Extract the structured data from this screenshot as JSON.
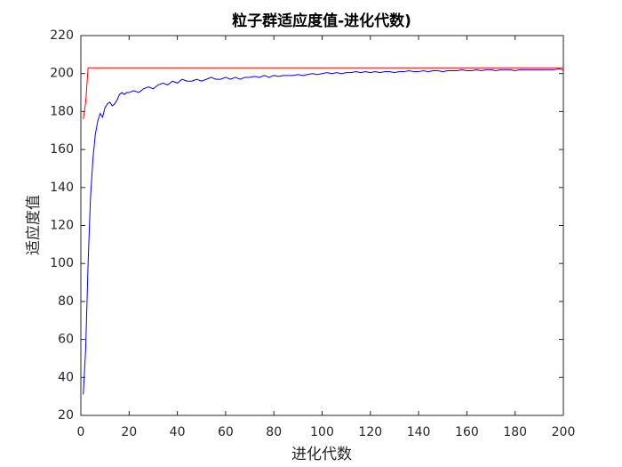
{
  "chart_data": {
    "type": "line",
    "title": "粒子群适应度值-进化代数)",
    "xlabel": "进化代数",
    "ylabel": "适应度值",
    "x": [
      1,
      2,
      3,
      4,
      5,
      6,
      7,
      8,
      9,
      10,
      11,
      12,
      13,
      14,
      15,
      16,
      17,
      18,
      19,
      20,
      22,
      24,
      26,
      28,
      30,
      32,
      34,
      36,
      38,
      40,
      42,
      44,
      46,
      48,
      50,
      52,
      54,
      56,
      58,
      60,
      62,
      64,
      66,
      68,
      70,
      72,
      74,
      76,
      78,
      80,
      82,
      84,
      86,
      88,
      90,
      92,
      94,
      96,
      98,
      100,
      102,
      104,
      106,
      108,
      110,
      112,
      114,
      116,
      118,
      120,
      122,
      124,
      126,
      128,
      130,
      132,
      134,
      136,
      138,
      140,
      142,
      144,
      146,
      148,
      150,
      152,
      154,
      156,
      158,
      160,
      162,
      164,
      166,
      168,
      170,
      172,
      174,
      176,
      178,
      180,
      182,
      184,
      186,
      188,
      190,
      192,
      194,
      196,
      198,
      200
    ],
    "series": [
      {
        "color": "#ff0000",
        "values": [
          176,
          185,
          203,
          203,
          203,
          203,
          203,
          203,
          203,
          203,
          203,
          203,
          203,
          203,
          203,
          203,
          203,
          203,
          203,
          203,
          203,
          203,
          203,
          203,
          203,
          203,
          203,
          203,
          203,
          203,
          203,
          203,
          203,
          203,
          203,
          203,
          203,
          203,
          203,
          203,
          203,
          203,
          203,
          203,
          203,
          203,
          203,
          203,
          203,
          203,
          203,
          203,
          203,
          203,
          203,
          203,
          203,
          203,
          203,
          203,
          203,
          203,
          203,
          203,
          203,
          203,
          203,
          203,
          203,
          203,
          203,
          203,
          203,
          203,
          203,
          203,
          203,
          203,
          203,
          203,
          203,
          203,
          203,
          203,
          203,
          203,
          203,
          203,
          203,
          203,
          203,
          203,
          203,
          203,
          203,
          203,
          203,
          203,
          203,
          203,
          203,
          203,
          203,
          203,
          203,
          203,
          203,
          203,
          203,
          203
        ]
      },
      {
        "color": "#0000ff",
        "values": [
          31,
          55,
          100,
          135,
          155,
          168,
          175,
          179,
          177,
          182,
          184,
          185,
          183,
          184,
          186,
          189,
          190,
          189,
          190,
          190,
          191,
          190,
          192,
          193,
          192,
          194,
          195,
          194,
          196,
          195,
          197,
          196,
          196,
          197,
          196,
          197,
          198,
          197,
          197,
          198,
          197,
          198,
          197,
          198,
          198,
          198.5,
          198,
          199,
          198,
          199,
          198.5,
          199,
          199,
          199,
          199.5,
          199,
          199.5,
          200,
          199.5,
          200,
          200.5,
          200,
          200.5,
          200,
          200.5,
          200.5,
          201,
          200.5,
          201,
          200.5,
          201,
          200.5,
          201,
          201,
          200.5,
          201,
          201,
          201.5,
          201,
          201,
          201.5,
          201,
          201.5,
          201.5,
          201,
          201.5,
          201.5,
          201.5,
          202,
          201.5,
          201.5,
          202,
          201.5,
          202,
          202,
          201.5,
          202,
          202,
          202,
          201.5,
          202,
          202,
          202,
          202,
          202,
          202,
          202,
          202,
          202.5,
          202
        ]
      }
    ],
    "xlim": [
      0,
      200
    ],
    "xticks": [
      0,
      20,
      40,
      60,
      80,
      100,
      120,
      140,
      160,
      180,
      200
    ],
    "ylim": [
      20,
      220
    ],
    "yticks": [
      20,
      40,
      60,
      80,
      100,
      120,
      140,
      160,
      180,
      200,
      220
    ]
  }
}
